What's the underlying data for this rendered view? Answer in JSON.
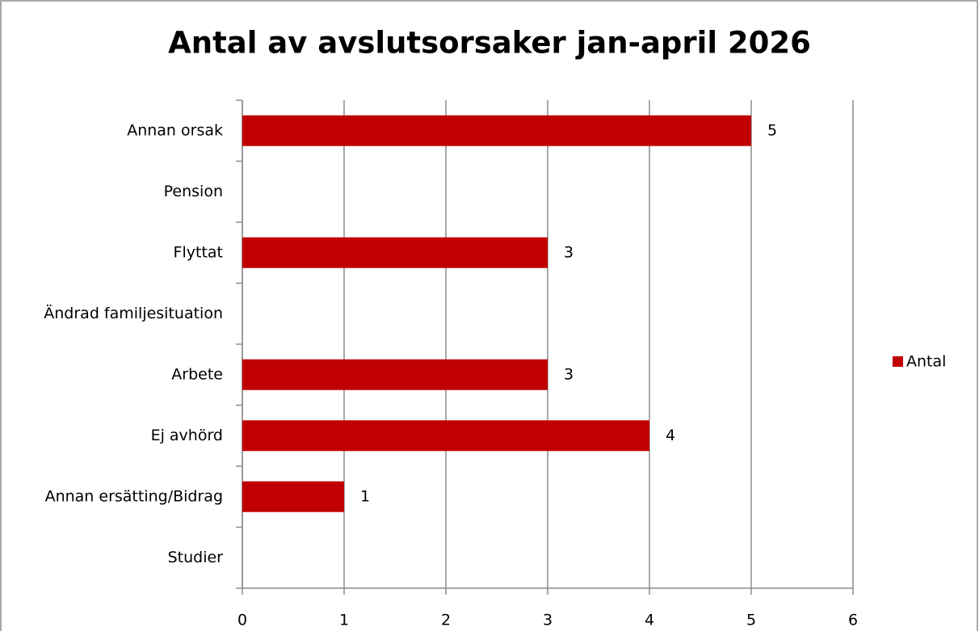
{
  "chart_data": {
    "type": "bar",
    "orientation": "horizontal",
    "title": "Antal av avslutsorsaker jan-april 2026",
    "categories": [
      "Annan orsak",
      "Pension",
      "Flyttat",
      "Ändrad familjesituation",
      "Arbete",
      "Ej avhörd",
      "Annan ersätting/Bidrag",
      "Studier"
    ],
    "series": [
      {
        "name": "Antal",
        "color": "#c00000",
        "values": [
          5,
          null,
          3,
          null,
          3,
          4,
          1,
          null
        ]
      }
    ],
    "xlim": [
      0,
      6
    ],
    "xticks": [
      0,
      1,
      2,
      3,
      4,
      5,
      6
    ],
    "grid": true,
    "legend": "right"
  }
}
